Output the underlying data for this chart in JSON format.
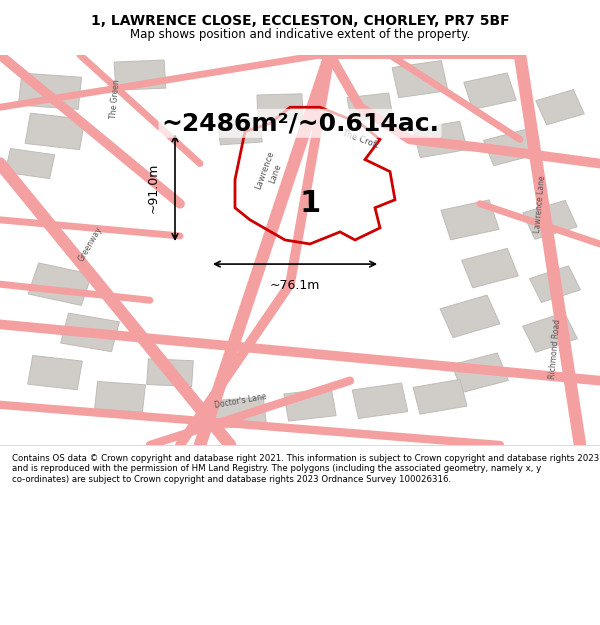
{
  "title_line1": "1, LAWRENCE CLOSE, ECCLESTON, CHORLEY, PR7 5BF",
  "title_line2": "Map shows position and indicative extent of the property.",
  "area_text": "~2486m²/~0.614ac.",
  "dimension_h": "~91.0m",
  "dimension_w": "~76.1m",
  "plot_number": "1",
  "footer_text": "Contains OS data © Crown copyright and database right 2021. This information is subject to Crown copyright and database rights 2023 and is reproduced with the permission of HM Land Registry. The polygons (including the associated geometry, namely x, y co-ordinates) are subject to Crown copyright and database rights 2023 Ordnance Survey 100026316.",
  "bg_color": "#f5f0eb",
  "map_bg": "#ffffff",
  "road_color": "#f5a0a0",
  "building_color": "#d0ccc8",
  "building_edge": "#c0bcb8",
  "plot_fill": "none",
  "plot_edge": "#cc0000",
  "title_bg": "#ffffff",
  "footer_bg": "#ffffff"
}
